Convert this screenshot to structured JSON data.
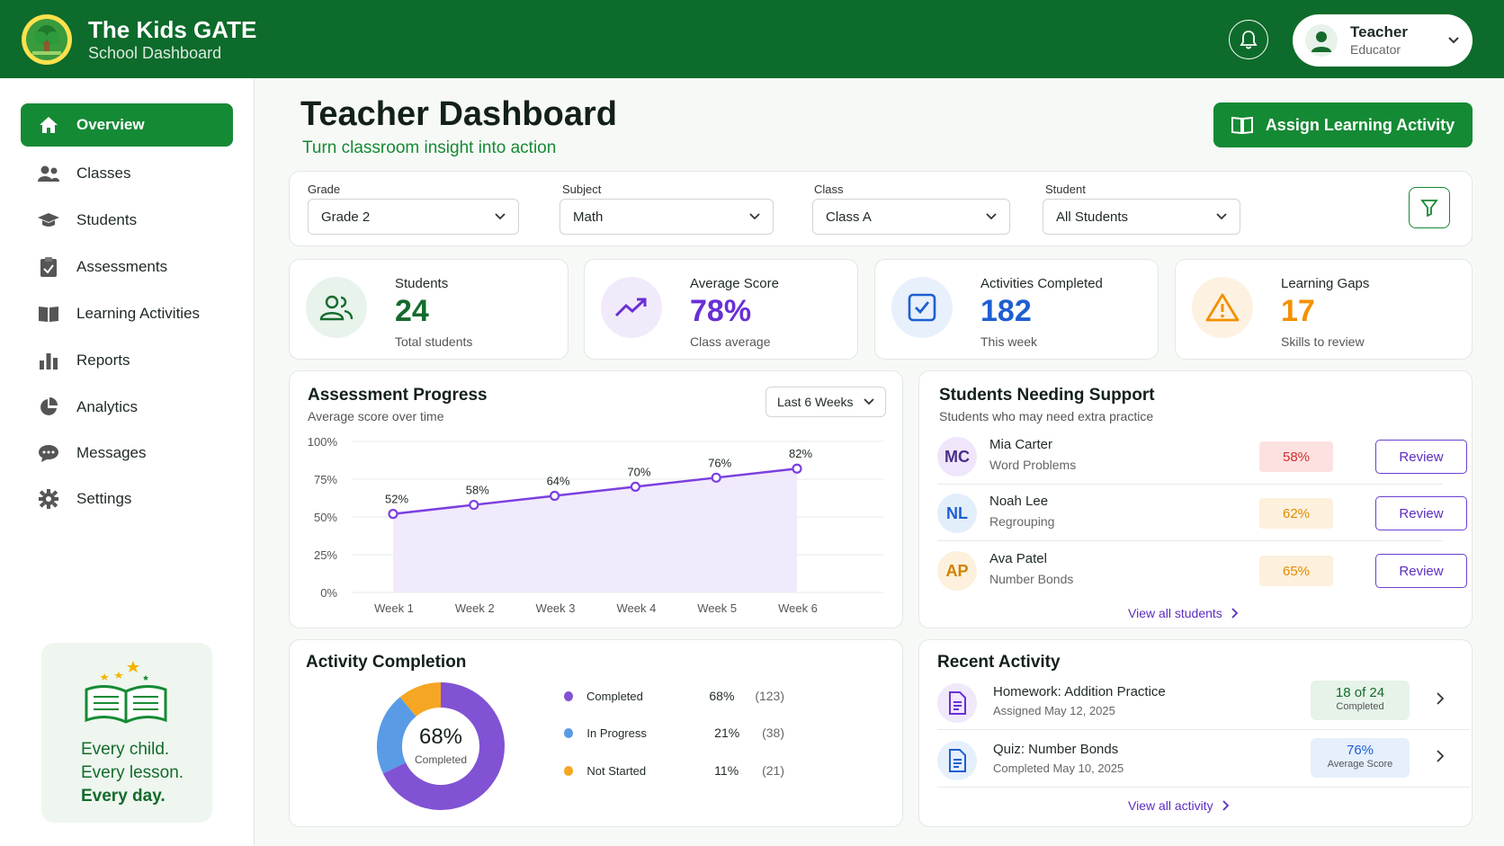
{
  "app": {
    "title": "The Kids GATE",
    "subtitle": "School Dashboard"
  },
  "user": {
    "name": "Teacher",
    "role": "Educator"
  },
  "sidebar": {
    "items": [
      {
        "label": "Overview",
        "icon": "home-icon",
        "active": true
      },
      {
        "label": "Classes",
        "icon": "users-icon"
      },
      {
        "label": "Students",
        "icon": "graduation-cap-icon"
      },
      {
        "label": "Assessments",
        "icon": "clipboard-icon"
      },
      {
        "label": "Learning Activities",
        "icon": "book-icon"
      },
      {
        "label": "Reports",
        "icon": "bar-chart-icon"
      },
      {
        "label": "Analytics",
        "icon": "pie-chart-icon"
      },
      {
        "label": "Messages",
        "icon": "chat-icon"
      },
      {
        "label": "Settings",
        "icon": "gear-icon"
      }
    ],
    "promo": {
      "line1": "Every child.",
      "line2": "Every lesson.",
      "line3": "Every day."
    }
  },
  "header": {
    "title": "Teacher Dashboard",
    "subtitle": "Turn classroom insight into action",
    "assign_label": "Assign Learning Activity"
  },
  "filters": [
    {
      "label": "Grade",
      "value": "Grade 2"
    },
    {
      "label": "Subject",
      "value": "Math"
    },
    {
      "label": "Class",
      "value": "Class A"
    },
    {
      "label": "Student",
      "value": "All Students"
    }
  ],
  "stats": [
    {
      "label": "Students",
      "value": "24",
      "sub": "Total students",
      "color": "#146b2c"
    },
    {
      "label": "Average Score",
      "value": "78%",
      "sub": "Class average",
      "color": "#6a2fd6"
    },
    {
      "label": "Activities Completed",
      "value": "182",
      "sub": "This week",
      "color": "#1d5fd1"
    },
    {
      "label": "Learning Gaps",
      "value": "17",
      "sub": "Skills to review",
      "color": "#f29100"
    }
  ],
  "progress": {
    "title": "Assessment Progress",
    "subtitle": "Average score over time",
    "range": "Last 6 Weeks"
  },
  "chart_data": {
    "type": "line",
    "x": [
      "Week 1",
      "Week 2",
      "Week 3",
      "Week 4",
      "Week 5",
      "Week 6"
    ],
    "y_ticks": [
      "100%",
      "75%",
      "50%",
      "25%",
      "0%"
    ],
    "y_tick_values": [
      100,
      75,
      50,
      25,
      0
    ],
    "ylim": [
      0,
      100
    ],
    "series": [
      {
        "values": [
          52,
          58,
          64,
          70,
          76,
          82
        ],
        "labels": [
          "52%",
          "58%",
          "64%",
          "70%",
          "76%",
          "82%"
        ],
        "color": "#7b3fe0"
      }
    ],
    "grid": true
  },
  "support": {
    "title": "Students Needing Support",
    "subtitle": "Students who may need extra practice",
    "students": [
      {
        "initials": "MC",
        "name": "Mia Carter",
        "topic": "Word Problems",
        "score": "58%",
        "action": "Review"
      },
      {
        "initials": "NL",
        "name": "Noah Lee",
        "topic": "Regrouping",
        "score": "62%",
        "action": "Review"
      },
      {
        "initials": "AP",
        "name": "Ava Patel",
        "topic": "Number Bonds",
        "score": "65%",
        "action": "Review"
      }
    ],
    "link": "View all students"
  },
  "completion": {
    "title": "Activity Completion",
    "center_value": "68%",
    "center_label": "Completed",
    "segments": [
      {
        "name": "Completed",
        "pct": "68%",
        "count": "(123)",
        "value": 68,
        "color": "#8152d4"
      },
      {
        "name": "In Progress",
        "pct": "21%",
        "count": "(38)",
        "value": 21,
        "color": "#5a9be6"
      },
      {
        "name": "Not Started",
        "pct": "11%",
        "count": "(21)",
        "value": 11,
        "color": "#f5a623"
      }
    ]
  },
  "recent": {
    "title": "Recent Activity",
    "items": [
      {
        "title": "Homework: Addition Practice",
        "sub": "Assigned May 12, 2025",
        "badge_value": "18 of 24",
        "badge_label": "Completed"
      },
      {
        "title": "Quiz: Number Bonds",
        "sub": "Completed May 10, 2025",
        "badge_value": "76%",
        "badge_label": "Average Score"
      }
    ],
    "link": "View all activity"
  }
}
